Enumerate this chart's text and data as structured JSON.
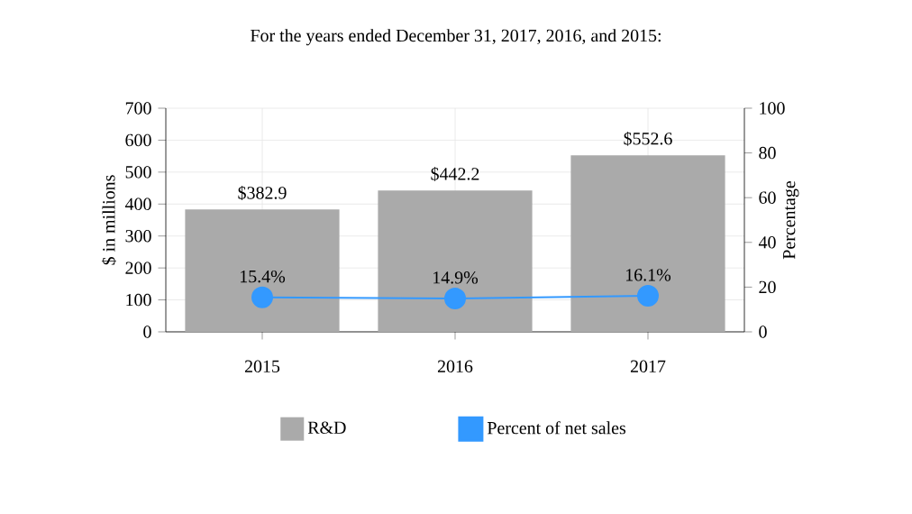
{
  "chart_data": {
    "type": "bar",
    "title": "For the years ended December 31, 2017, 2016, and 2015:",
    "categories": [
      "2015",
      "2016",
      "2017"
    ],
    "ylabel": "$ in millions",
    "y2label": "Percentage",
    "ylim": [
      0,
      700
    ],
    "yticks": [
      0,
      100,
      200,
      300,
      400,
      500,
      600,
      700
    ],
    "y2lim": [
      0,
      100
    ],
    "y2ticks": [
      0,
      20,
      40,
      60,
      80,
      100
    ],
    "grid": true,
    "legend": "bottom",
    "series": [
      {
        "name": "R&D",
        "color": "#aaaaaa",
        "values": [
          382.9,
          442.2,
          552.6
        ],
        "value_labels": [
          "$382.9",
          "$442.2",
          "$552.6"
        ]
      },
      {
        "name": "Percent of net sales",
        "type": "line",
        "axis": "y2",
        "color": "#3399ff",
        "marker": "circle",
        "line_style": "solid",
        "values": [
          15.4,
          14.9,
          16.1
        ],
        "value_labels": [
          "15.4%",
          "14.9%",
          "16.1%"
        ]
      }
    ]
  }
}
